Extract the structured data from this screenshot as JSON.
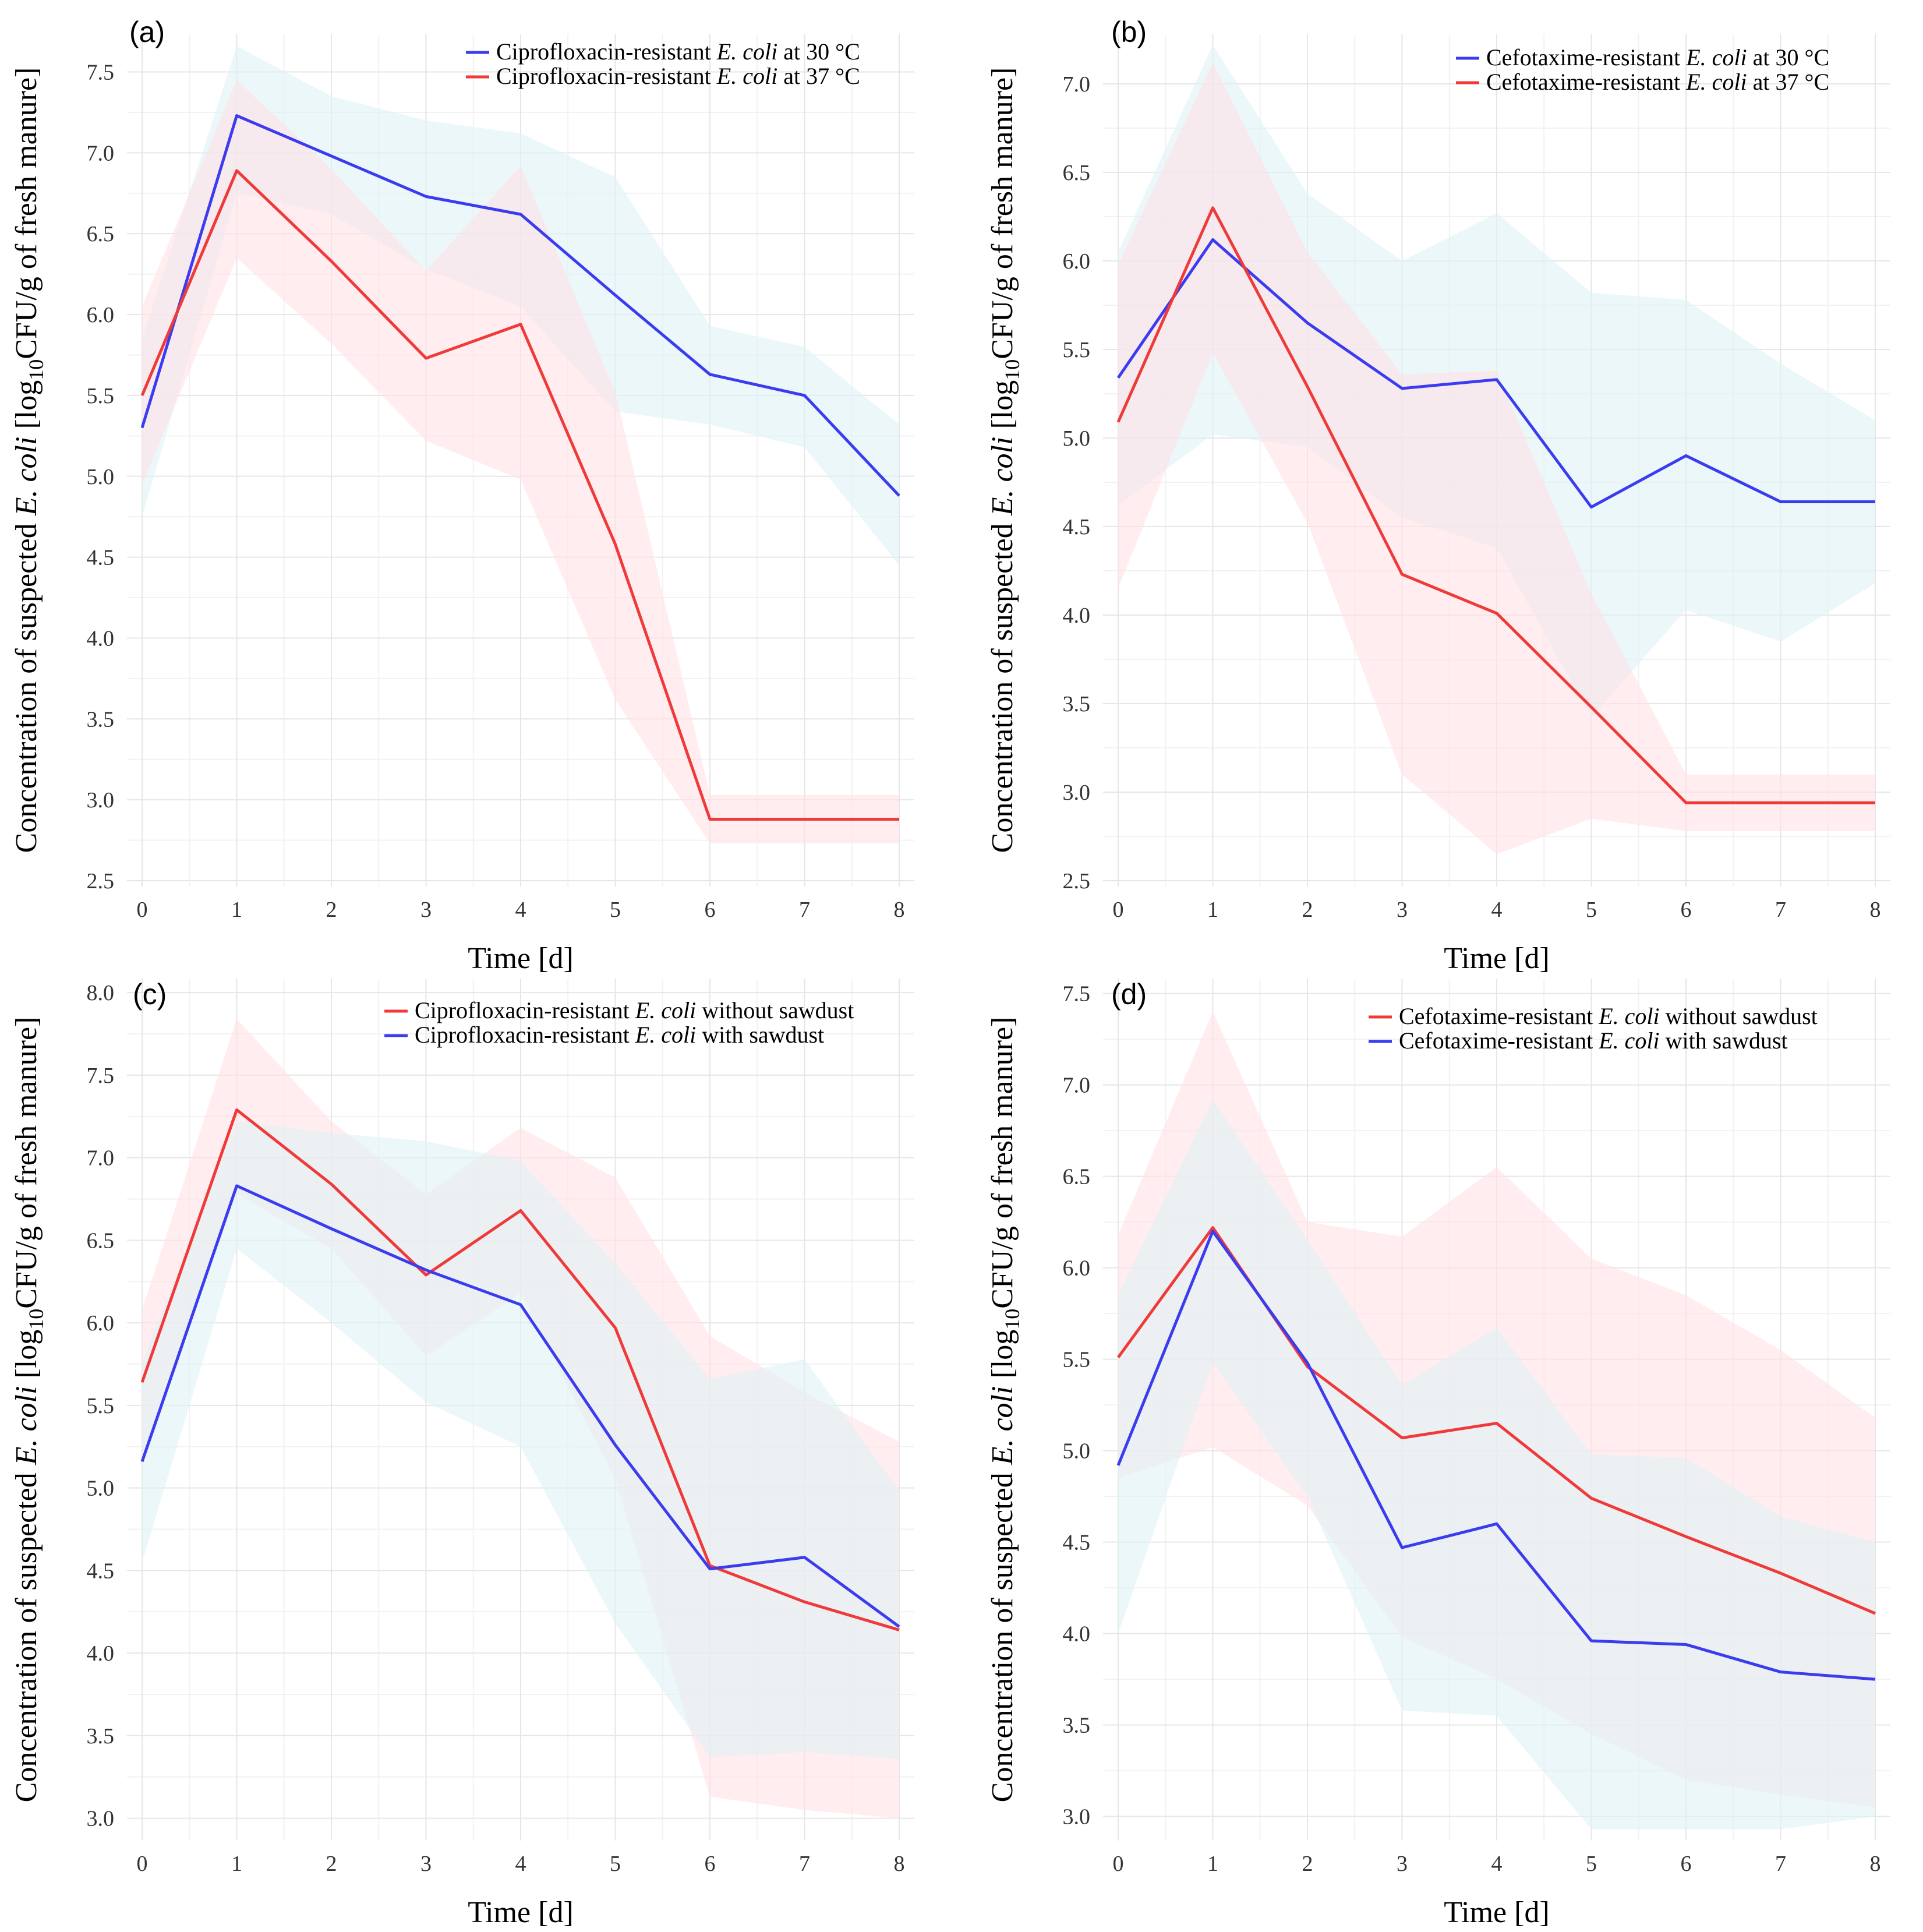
{
  "figure": {
    "colors": {
      "blue_line": "#3b3bf0",
      "red_line": "#f03a3a",
      "blue_band": "#dff2f5",
      "red_band": "#ffe1e6",
      "grid_major": "#e6e6e6",
      "grid_minor": "#f2f2f2"
    }
  },
  "chart_data": [
    {
      "type": "line",
      "panel_label": "(a)",
      "xlabel": "Time [d]",
      "ylabel": {
        "pre": "Concentration of suspected ",
        "italic": "E. coli",
        "mid": " [log",
        "sub": "10",
        "post": "CFU/g of fresh manure]"
      },
      "x": [
        0,
        1,
        2,
        3,
        4,
        5,
        6,
        7,
        8
      ],
      "x_ticks": [
        "0",
        "1",
        "2",
        "3",
        "4",
        "5",
        "6",
        "7",
        "8"
      ],
      "ylim": [
        2.5,
        7.7
      ],
      "y_ticks": [
        2.5,
        3.0,
        3.5,
        4.0,
        4.5,
        5.0,
        5.5,
        6.0,
        6.5,
        7.0,
        7.5
      ],
      "y_tick_labels": [
        "2.5",
        "3.0",
        "3.5",
        "4.0",
        "4.5",
        "5.0",
        "5.5",
        "6.0",
        "6.5",
        "7.0",
        "7.5"
      ],
      "series": [
        {
          "name_pre": "Ciprofloxacin-resistant ",
          "name_italic": "E. coli",
          "name_post": " at 30 °C",
          "color": "blue",
          "values": [
            5.3,
            7.23,
            6.98,
            6.73,
            6.62,
            6.12,
            5.63,
            5.5,
            4.88
          ],
          "lower": [
            4.75,
            6.75,
            6.62,
            6.28,
            6.05,
            5.4,
            5.32,
            5.18,
            4.45
          ],
          "upper": [
            5.85,
            7.66,
            7.35,
            7.2,
            7.12,
            6.85,
            5.93,
            5.8,
            5.32
          ]
        },
        {
          "name_pre": "Ciprofloxacin-resistant ",
          "name_italic": "E. coli",
          "name_post": " at 37 °C",
          "color": "red",
          "values": [
            5.5,
            6.89,
            6.33,
            5.73,
            5.94,
            4.58,
            2.88,
            2.88,
            2.88
          ],
          "lower": [
            4.95,
            6.35,
            5.82,
            5.22,
            4.98,
            3.62,
            2.73,
            2.73,
            2.73
          ],
          "upper": [
            6.05,
            7.45,
            6.9,
            6.27,
            6.92,
            5.52,
            3.03,
            3.03,
            3.03
          ]
        }
      ]
    },
    {
      "type": "line",
      "panel_label": "(b)",
      "xlabel": "Time [d]",
      "ylabel": {
        "pre": "Concentration of suspected ",
        "italic": "E. coli",
        "mid": " [log",
        "sub": "10",
        "post": "CFU/g of fresh manure]"
      },
      "x": [
        0,
        1,
        2,
        3,
        4,
        5,
        6,
        7,
        8
      ],
      "x_ticks": [
        "0",
        "1",
        "2",
        "3",
        "4",
        "5",
        "6",
        "7",
        "8"
      ],
      "ylim": [
        2.5,
        7.25
      ],
      "y_ticks": [
        2.5,
        3.0,
        3.5,
        4.0,
        4.5,
        5.0,
        5.5,
        6.0,
        6.5,
        7.0
      ],
      "y_tick_labels": [
        "2.5",
        "3.0",
        "3.5",
        "4.0",
        "4.5",
        "5.0",
        "5.5",
        "6.0",
        "6.5",
        "7.0"
      ],
      "series": [
        {
          "name_pre": "Cefotaxime-resistant ",
          "name_italic": "E. coli",
          "name_post": " at 30 °C",
          "color": "blue",
          "values": [
            5.34,
            6.12,
            5.65,
            5.28,
            5.33,
            4.61,
            4.9,
            4.64,
            4.64
          ],
          "lower": [
            4.62,
            5.02,
            4.95,
            4.55,
            4.38,
            3.42,
            4.03,
            3.85,
            4.18
          ],
          "upper": [
            6.05,
            7.22,
            6.38,
            6.0,
            6.27,
            5.82,
            5.78,
            5.42,
            5.1
          ]
        },
        {
          "name_pre": "Cefotaxime-resistant ",
          "name_italic": "E. coli",
          "name_post": " at 37 °C",
          "color": "red",
          "values": [
            5.09,
            6.3,
            5.29,
            4.23,
            4.01,
            3.48,
            2.94,
            2.94,
            2.94
          ],
          "lower": [
            4.15,
            5.48,
            4.52,
            3.1,
            2.65,
            2.85,
            2.78,
            2.78,
            2.78
          ],
          "upper": [
            5.98,
            7.12,
            6.05,
            5.36,
            5.38,
            4.12,
            3.1,
            3.1,
            3.1
          ]
        }
      ]
    },
    {
      "type": "line",
      "panel_label": "(c)",
      "xlabel": "Time [d]",
      "ylabel": {
        "pre": "Concentration of suspected ",
        "italic": "E. coli",
        "mid": " [log",
        "sub": "10",
        "post": "CFU/g of fresh manure]"
      },
      "x": [
        0,
        1,
        2,
        3,
        4,
        5,
        6,
        7,
        8
      ],
      "x_ticks": [
        "0",
        "1",
        "2",
        "3",
        "4",
        "5",
        "6",
        "7",
        "8"
      ],
      "ylim": [
        2.9,
        8.05
      ],
      "y_ticks": [
        3.0,
        3.5,
        4.0,
        4.5,
        5.0,
        5.5,
        6.0,
        6.5,
        7.0,
        7.5,
        8.0
      ],
      "y_tick_labels": [
        "3.0",
        "3.5",
        "4.0",
        "4.5",
        "5.0",
        "5.5",
        "6.0",
        "6.5",
        "7.0",
        "7.5",
        "8.0"
      ],
      "series": [
        {
          "name_pre": "Ciprofloxacin-resistant ",
          "name_italic": "E. coli",
          "name_post": " without sawdust",
          "color": "red",
          "values": [
            5.64,
            7.29,
            6.84,
            6.29,
            6.68,
            5.97,
            4.53,
            4.31,
            4.14
          ],
          "lower": [
            5.2,
            6.78,
            6.45,
            5.8,
            6.18,
            5.05,
            3.13,
            3.05,
            3.0
          ],
          "upper": [
            6.08,
            7.84,
            7.22,
            6.78,
            7.18,
            6.88,
            5.92,
            5.58,
            5.28
          ]
        },
        {
          "name_pre": "Ciprofloxacin-resistant ",
          "name_italic": "E. coli",
          "name_post": " with sawdust",
          "color": "blue",
          "values": [
            5.16,
            6.83,
            6.57,
            6.32,
            6.11,
            5.26,
            4.51,
            4.58,
            4.16
          ],
          "lower": [
            4.55,
            6.45,
            6.0,
            5.52,
            5.25,
            4.18,
            3.37,
            3.4,
            3.36
          ],
          "upper": [
            5.76,
            7.22,
            7.15,
            7.1,
            6.98,
            6.36,
            5.66,
            5.78,
            4.98
          ]
        }
      ]
    },
    {
      "type": "line",
      "panel_label": "(d)",
      "xlabel": "Time [d]",
      "ylabel": {
        "pre": "Concentration of suspected ",
        "italic": "E. coli",
        "mid": " [log",
        "sub": "10",
        "post": "CFU/g of fresh manure]"
      },
      "x": [
        0,
        1,
        2,
        3,
        4,
        5,
        6,
        7,
        8
      ],
      "x_ticks": [
        "0",
        "1",
        "2",
        "3",
        "4",
        "5",
        "6",
        "7",
        "8"
      ],
      "ylim": [
        2.9,
        7.55
      ],
      "y_ticks": [
        3.0,
        3.5,
        4.0,
        4.5,
        5.0,
        5.5,
        6.0,
        6.5,
        7.0,
        7.5
      ],
      "y_tick_labels": [
        "3.0",
        "3.5",
        "4.0",
        "4.5",
        "5.0",
        "5.5",
        "6.0",
        "6.5",
        "7.0",
        "7.5"
      ],
      "series": [
        {
          "name_pre": "Cefotaxime-resistant ",
          "name_italic": "E. coli",
          "name_post": " without sawdust",
          "color": "red",
          "values": [
            5.51,
            6.22,
            5.46,
            5.07,
            5.15,
            4.74,
            4.53,
            4.33,
            4.11
          ],
          "lower": [
            4.85,
            5.02,
            4.7,
            3.98,
            3.75,
            3.45,
            3.2,
            3.12,
            3.05
          ],
          "upper": [
            6.18,
            7.4,
            6.25,
            6.17,
            6.55,
            6.05,
            5.85,
            5.55,
            5.18
          ]
        },
        {
          "name_pre": "Cefotaxime-resistant ",
          "name_italic": "E. coli",
          "name_post": " with sawdust",
          "color": "blue",
          "values": [
            4.92,
            6.2,
            5.48,
            4.47,
            4.6,
            3.96,
            3.94,
            3.79,
            3.75
          ],
          "lower": [
            4.0,
            5.48,
            4.75,
            3.58,
            3.55,
            2.93,
            2.93,
            2.93,
            3.0
          ],
          "upper": [
            5.85,
            6.92,
            6.15,
            5.36,
            5.67,
            4.98,
            4.96,
            4.64,
            4.5
          ]
        }
      ]
    }
  ]
}
